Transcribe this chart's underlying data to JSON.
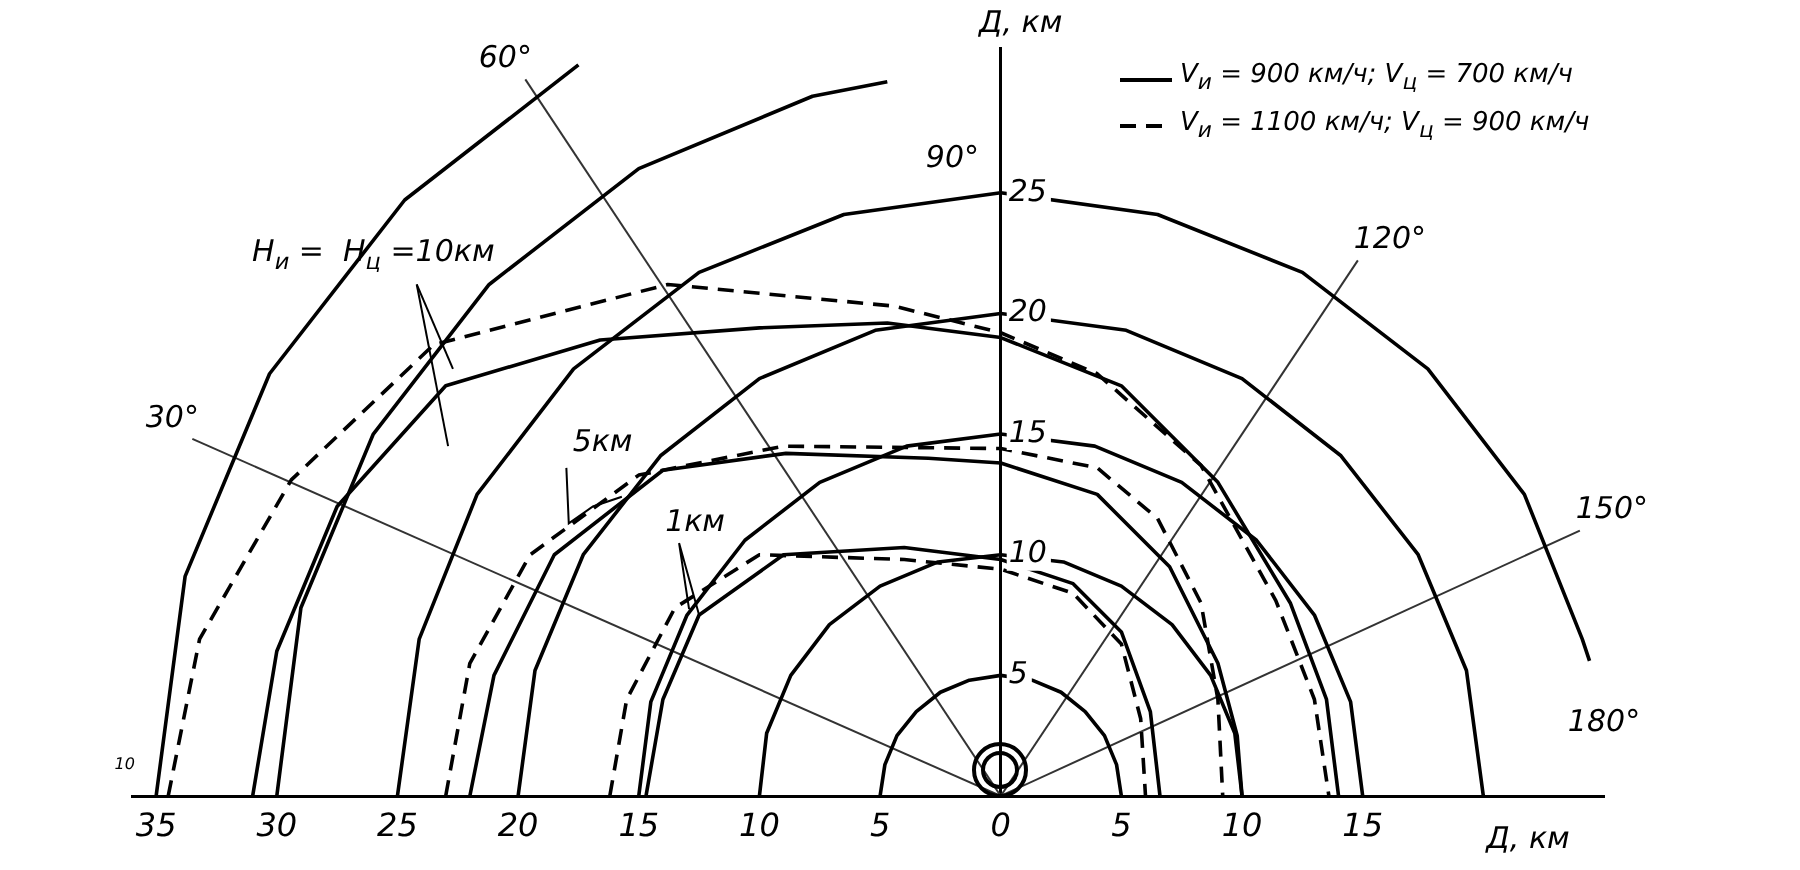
{
  "chart_data": {
    "type": "line",
    "xlabel": "Д, км",
    "ylabel": "Д, км",
    "xlim": [
      -36,
      25
    ],
    "ylim": [
      0,
      31
    ],
    "xticks": [
      {
        "value": -35,
        "label": "35"
      },
      {
        "value": -30,
        "label": "30"
      },
      {
        "value": -25,
        "label": "25"
      },
      {
        "value": -20,
        "label": "20"
      },
      {
        "value": -15,
        "label": "15"
      },
      {
        "value": -10,
        "label": "10"
      },
      {
        "value": -5,
        "label": "5"
      },
      0,
      5,
      10,
      15
    ],
    "yticks": [
      5,
      10,
      15,
      20,
      25
    ],
    "grid": false,
    "legend": "top right",
    "marker": "none",
    "series": [
      {
        "name": "V$_{и}$ = 900 км/ч; V$_{ц}$ = 700 км/ч",
        "color": "#000000",
        "line_style": "solid",
        "x": [
          -31,
          -30,
          -27.5,
          -23,
          -16.6,
          -10,
          -4.7,
          0,
          5,
          9,
          12,
          13.5,
          14
        ],
        "values": [
          0,
          6,
          12,
          17,
          18.9,
          19.4,
          19.6,
          19,
          17,
          13,
          8,
          4,
          0
        ]
      },
      {
        "name": "V$_{и}$ = 1100 км/ч; V$_{ц}$ = 900 км/ч",
        "color": "#000000",
        "line_style": "dashed",
        "x": [
          -34.5,
          -33.2,
          -29.4,
          -23.5,
          -13.8,
          -4.4,
          0,
          4,
          8.3,
          11.4,
          13,
          13.6
        ],
        "values": [
          0,
          6.5,
          13.1,
          18.7,
          21.2,
          20.3,
          19.2,
          17.5,
          13.7,
          8.1,
          4,
          0
        ]
      },
      {
        "color": "#000000",
        "line_style": "solid",
        "x": [
          -22,
          -21,
          -18.5,
          -14,
          -8.9,
          -3,
          0,
          4,
          7,
          9,
          9.8,
          10
        ],
        "values": [
          0,
          5,
          10,
          13.5,
          14.2,
          14,
          13.8,
          12.5,
          9.5,
          5.5,
          2.5,
          0
        ]
      },
      {
        "color": "#000000",
        "line_style": "dashed",
        "x": [
          -23,
          -22,
          -19.5,
          -15,
          -9,
          0,
          4,
          6.5,
          8.3,
          9,
          9.2
        ],
        "values": [
          0,
          5.5,
          10,
          13.3,
          14.5,
          14.4,
          13.6,
          11.5,
          8,
          4,
          0
        ]
      },
      {
        "color": "#000000",
        "line_style": "solid",
        "x": [
          -14.7,
          -14,
          -12.5,
          -9,
          -4,
          0,
          3,
          5,
          6.2,
          6.6
        ],
        "values": [
          0,
          4,
          7.5,
          10,
          10.3,
          9.8,
          8.8,
          6.8,
          3.5,
          0
        ]
      },
      {
        "color": "#000000",
        "line_style": "dashed",
        "x": [
          -16.2,
          -15.5,
          -13.5,
          -10,
          -4,
          0,
          3,
          5,
          5.8,
          6
        ],
        "values": [
          0,
          4,
          7.8,
          10,
          9.8,
          9.4,
          8.4,
          6.3,
          3.2,
          0
        ]
      },
      {
        "color": "#000000",
        "line_style": "solid",
        "x": [
          5,
          4.8,
          4.3,
          3.5,
          2.5,
          1.3,
          0,
          -1.3,
          -2.5,
          -3.5,
          -4.3,
          -4.8,
          -5
        ],
        "values": [
          0,
          1.3,
          2.5,
          3.5,
          4.3,
          4.8,
          5,
          4.8,
          4.3,
          3.5,
          2.5,
          1.3,
          0
        ]
      },
      {
        "color": "#000000",
        "line_style": "solid",
        "x": [
          10,
          9.7,
          8.7,
          7.1,
          5,
          2.6,
          0,
          -2.6,
          -5,
          -7.1,
          -8.7,
          -9.7,
          -10
        ],
        "values": [
          0,
          2.6,
          5,
          7.1,
          8.7,
          9.7,
          10,
          9.7,
          8.7,
          7.1,
          5,
          2.6,
          0
        ]
      },
      {
        "color": "#000000",
        "line_style": "solid",
        "x": [
          15,
          14.5,
          13,
          10.6,
          7.5,
          3.9,
          0,
          -3.9,
          -7.5,
          -10.6,
          -13,
          -14.5,
          -15
        ],
        "values": [
          0,
          3.9,
          7.5,
          10.6,
          13,
          14.5,
          15,
          14.5,
          13,
          10.6,
          7.5,
          3.9,
          0
        ]
      },
      {
        "color": "#000000",
        "line_style": "solid",
        "x": [
          20,
          19.3,
          17.3,
          14.1,
          10,
          5.2,
          0,
          -5.2,
          -10,
          -14.1,
          -17.3,
          -19.3,
          -20
        ],
        "values": [
          0,
          5.2,
          10,
          14.1,
          17.3,
          19.3,
          20,
          19.3,
          17.3,
          14.1,
          10,
          5.2,
          0
        ]
      },
      {
        "color": "#000000",
        "line_style": "solid",
        "x": [
          24.4,
          24.1,
          21.7,
          17.7,
          12.5,
          6.5,
          0,
          -6.5,
          -12.5,
          -17.7,
          -21.7,
          -24.1,
          -25
        ],
        "values": [
          5.6,
          6.5,
          12.5,
          17.7,
          21.7,
          24.1,
          25,
          24.1,
          21.7,
          17.7,
          12.5,
          6.5,
          0
        ]
      },
      {
        "color": "#000000",
        "line_style": "solid",
        "x": [
          -4.7,
          -7.8,
          -15,
          -21.2,
          -26,
          -29,
          -30
        ],
        "values": [
          29.6,
          29,
          26,
          21.2,
          15,
          7.8,
          0
        ]
      },
      {
        "color": "#000000",
        "line_style": "solid",
        "x": [
          -17.5,
          -24.7,
          -30.3,
          -33.8,
          -35
        ],
        "values": [
          30.3,
          24.7,
          17.5,
          9.1,
          0
        ]
      },
      {
        "color": "#333333",
        "line_style": "solid",
        "x": [
          0,
          -33.5
        ],
        "values": [
          0,
          14.8
        ]
      },
      {
        "color": "#333333",
        "line_style": "solid",
        "x": [
          0,
          -19.7
        ],
        "values": [
          0,
          29.7
        ]
      },
      {
        "color": "#333333",
        "line_style": "solid",
        "x": [
          0,
          14.8
        ],
        "values": [
          0,
          22.2
        ]
      },
      {
        "color": "#333333",
        "line_style": "solid",
        "x": [
          0,
          24
        ],
        "values": [
          0,
          11
        ]
      }
    ],
    "annotations": [
      {
        "text": "30°",
        "x": -33.5,
        "y": 14.8
      },
      {
        "text": "60°",
        "x": -19.7,
        "y": 29.7
      },
      "90°",
      {
        "text": "120°",
        "x": 14.8,
        "y": 22.2
      },
      {
        "text": "150°",
        "x": 24,
        "y": 11
      },
      "180°",
      "H$_{и}$ =  H$_{ц}$ =10км",
      "5км",
      {
        "text": "1км",
        "x": -12.5,
        "y": 7.5
      },
      "10"
    ]
  }
}
